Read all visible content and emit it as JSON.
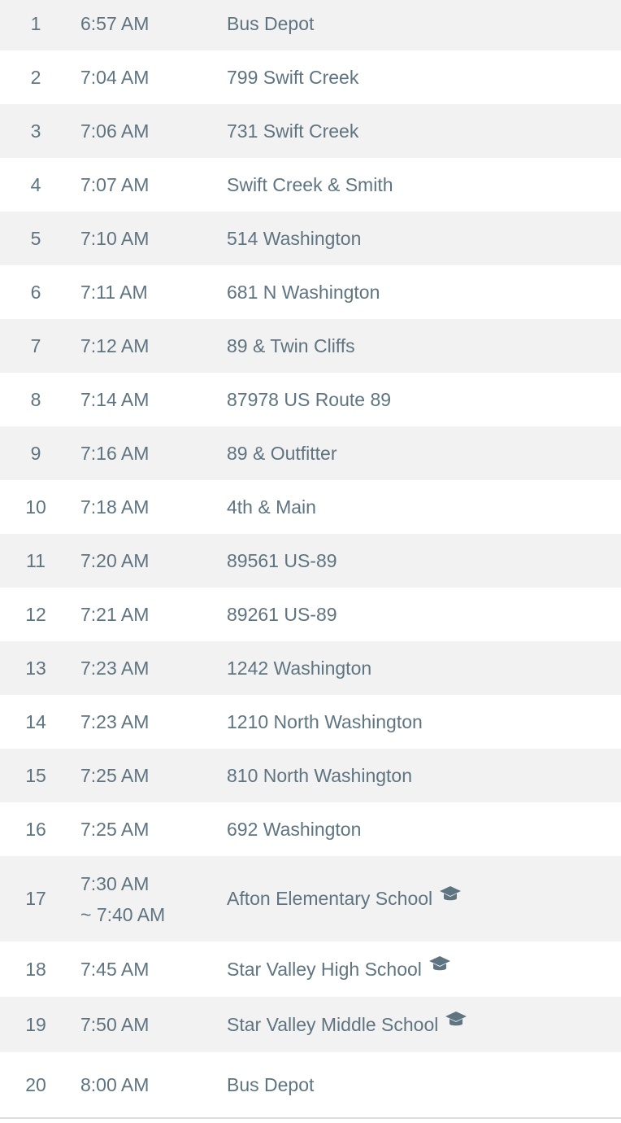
{
  "accent_color": "#5f7481",
  "stops": [
    {
      "num": "1",
      "time": "6:57 AM",
      "place": "Bus Depot"
    },
    {
      "num": "2",
      "time": "7:04 AM",
      "place": "799 Swift Creek"
    },
    {
      "num": "3",
      "time": "7:06 AM",
      "place": "731 Swift Creek"
    },
    {
      "num": "4",
      "time": "7:07 AM",
      "place": "Swift Creek & Smith"
    },
    {
      "num": "5",
      "time": "7:10 AM",
      "place": "514 Washington"
    },
    {
      "num": "6",
      "time": "7:11 AM",
      "place": "681 N Washington"
    },
    {
      "num": "7",
      "time": "7:12 AM",
      "place": "89 & Twin Cliffs"
    },
    {
      "num": "8",
      "time": "7:14 AM",
      "place": "87978 US Route 89"
    },
    {
      "num": "9",
      "time": "7:16 AM",
      "place": "89 & Outfitter"
    },
    {
      "num": "10",
      "time": "7:18 AM",
      "place": "4th & Main"
    },
    {
      "num": "11",
      "time": "7:20 AM",
      "place": "89561 US-89"
    },
    {
      "num": "12",
      "time": "7:21 AM",
      "place": "89261 US-89"
    },
    {
      "num": "13",
      "time": "7:23 AM",
      "place": "1242 Washington"
    },
    {
      "num": "14",
      "time": "7:23 AM",
      "place": "1210 North Washington"
    },
    {
      "num": "15",
      "time": "7:25 AM",
      "place": "810 North Washington"
    },
    {
      "num": "16",
      "time": "7:25 AM",
      "place": "692 Washington"
    },
    {
      "num": "17",
      "time": "7:30 AM",
      "time_end": "~ 7:40 AM",
      "place": "Afton Elementary School",
      "icon": "graduation-cap-icon"
    },
    {
      "num": "18",
      "time": "7:45 AM",
      "place": "Star Valley High School",
      "icon": "graduation-cap-icon"
    },
    {
      "num": "19",
      "time": "7:50 AM",
      "place": "Star Valley Middle School",
      "icon": "graduation-cap-icon"
    },
    {
      "num": "20",
      "time": "8:00 AM",
      "place": "Bus Depot"
    }
  ]
}
